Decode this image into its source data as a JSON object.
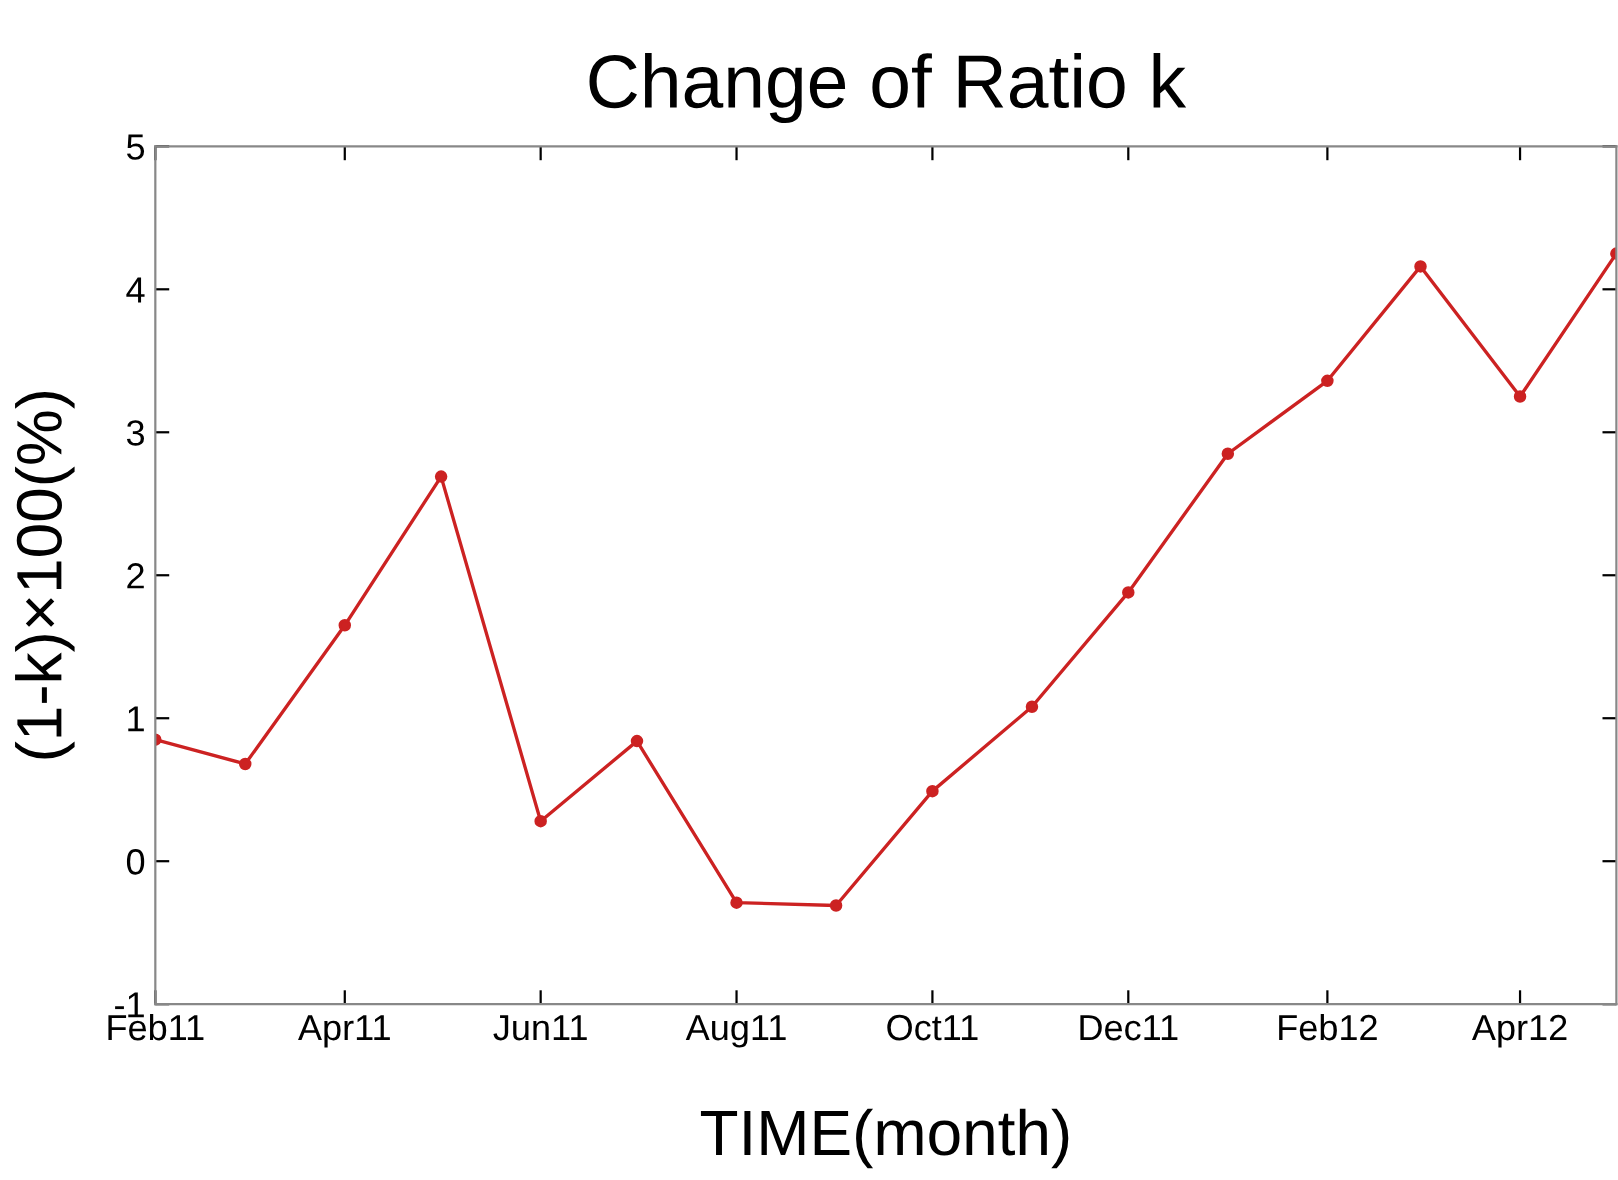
{
  "chart_data": {
    "type": "line",
    "title": "Change of Ratio k",
    "xlabel": "TIME(month)",
    "ylabel": "(1-k)×100(%)",
    "x": [
      "2011-02",
      "2011-03",
      "2011-04",
      "2011-05",
      "2011-06",
      "2011-07",
      "2011-08",
      "2011-09",
      "2011-10",
      "2011-11",
      "2011-12",
      "2012-01",
      "2012-02",
      "2012-03",
      "2012-04",
      "2012-05"
    ],
    "series": [
      {
        "color": "#cc2222",
        "values": [
          0.85,
          0.68,
          1.65,
          2.69,
          0.28,
          0.84,
          -0.29,
          -0.31,
          0.49,
          1.08,
          1.88,
          2.85,
          3.36,
          4.16,
          3.25,
          4.25
        ]
      }
    ],
    "marker": "circle",
    "line_style": "solid",
    "grid": false,
    "legend": false,
    "xlim": [
      "2011-02",
      "2012-05"
    ],
    "xticks": [
      {
        "value": "2011-02",
        "label": "Feb11"
      },
      {
        "value": "2011-04",
        "label": "Apr11"
      },
      {
        "value": "2011-06",
        "label": "Jun11"
      },
      {
        "value": "2011-08",
        "label": "Aug11"
      },
      {
        "value": "2011-10",
        "label": "Oct11"
      },
      {
        "value": "2011-12",
        "label": "Dec11"
      },
      {
        "value": "2012-02",
        "label": "Feb12"
      },
      {
        "value": "2012-04",
        "label": "Apr12"
      }
    ],
    "ylim": [
      -1,
      5
    ],
    "yticks": [
      -1,
      0,
      1,
      2,
      3,
      4,
      5
    ]
  }
}
